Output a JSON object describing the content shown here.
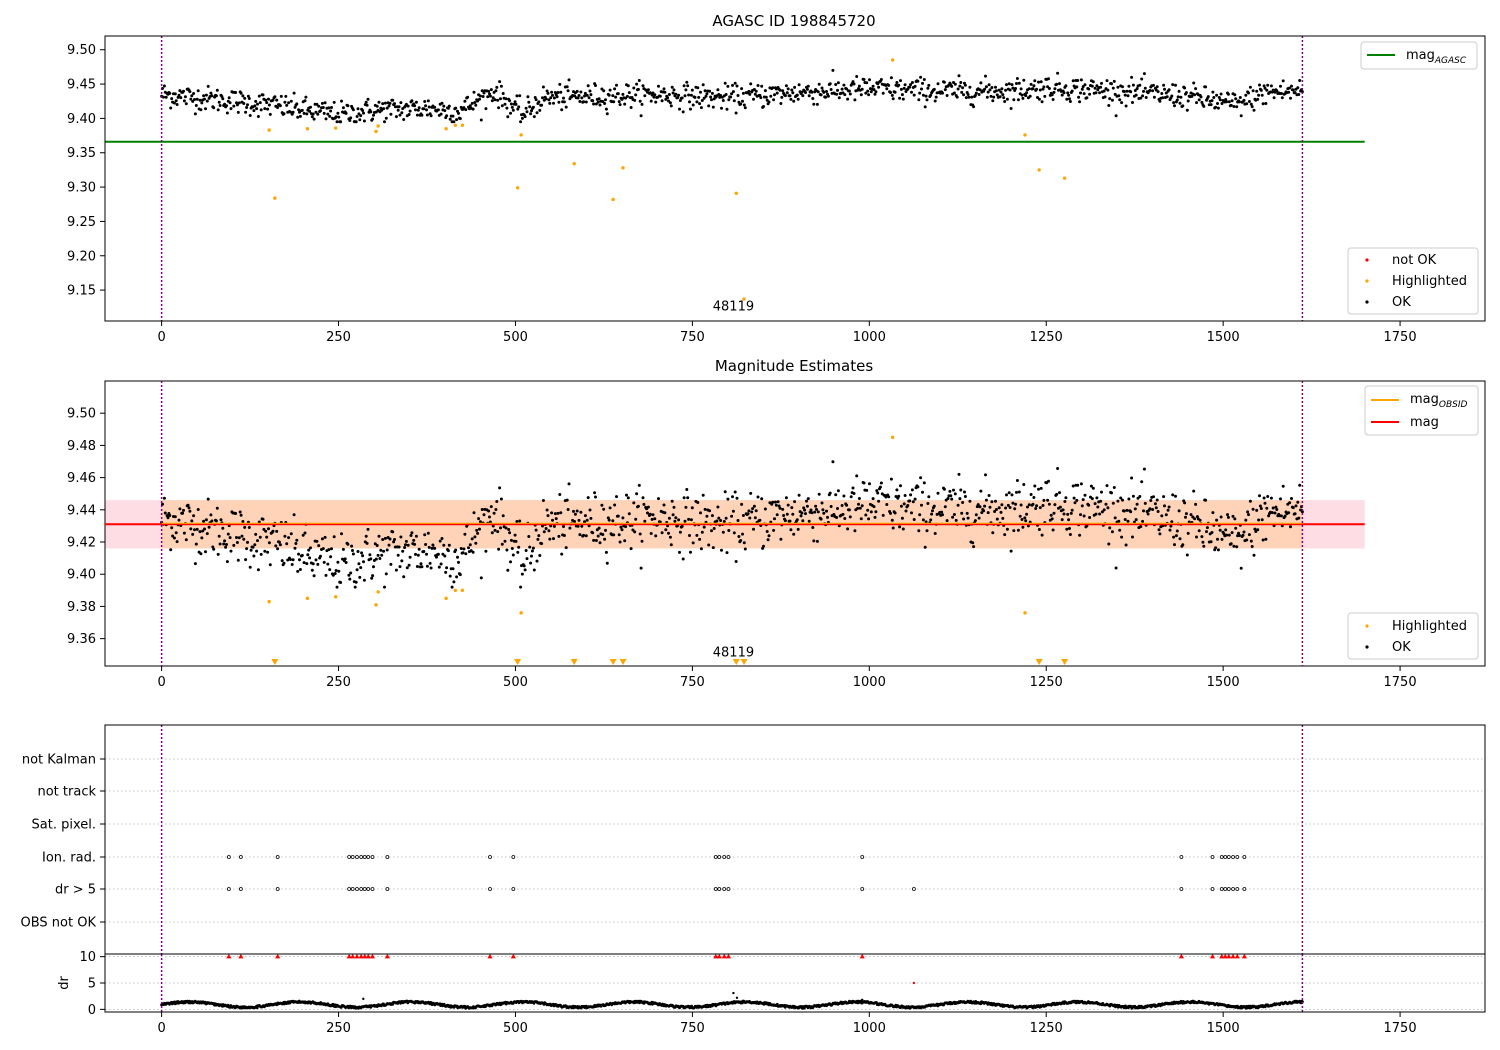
{
  "chart_data": [
    {
      "type": "scatter",
      "title": "AGASC ID 198845720",
      "xlim": [
        -80,
        1870
      ],
      "ylim": [
        9.105,
        9.52
      ],
      "xticks": [
        0,
        250,
        500,
        750,
        1000,
        1250,
        1500,
        1750
      ],
      "yticks": [
        9.15,
        9.2,
        9.25,
        9.3,
        9.35,
        9.4,
        9.45,
        9.5
      ],
      "vlines": [
        0,
        1612
      ],
      "annotation": {
        "text": "48119",
        "x": 808,
        "y": 9.12
      },
      "reference_line": {
        "name": "mag_AGASC",
        "y": 9.366,
        "x0": -80,
        "x1": 1700,
        "color": "#008000"
      },
      "legend_top": {
        "placement": "top-right",
        "items": [
          {
            "label": "mag",
            "sub": "AGASC",
            "color": "#008000"
          }
        ]
      },
      "legend_bottom": {
        "placement": "bottom-right",
        "items": [
          {
            "label": "not OK",
            "color": "#ff0000"
          },
          {
            "label": "Highlighted",
            "color": "#ffa500"
          },
          {
            "label": "OK",
            "color": "#000000"
          }
        ]
      },
      "series": [
        {
          "name": "Highlighted",
          "color": "#ffa500",
          "points": [
            [
              152,
              9.383
            ],
            [
              160,
              9.284
            ],
            [
              206,
              9.385
            ],
            [
              246,
              9.386
            ],
            [
              303,
              9.381
            ],
            [
              306,
              9.389
            ],
            [
              402,
              9.385
            ],
            [
              415,
              9.39
            ],
            [
              425,
              9.39
            ],
            [
              503,
              9.299
            ],
            [
              508,
              9.376
            ],
            [
              583,
              9.334
            ],
            [
              638,
              9.282
            ],
            [
              652,
              9.328
            ],
            [
              812,
              9.291
            ],
            [
              823,
              9.137
            ],
            [
              1033,
              9.485
            ],
            [
              1220,
              9.376
            ],
            [
              1240,
              9.325
            ],
            [
              1276,
              9.313
            ]
          ]
        },
        {
          "name": "OK",
          "color": "#000000",
          "trend": [
            [
              0,
              9.435
            ],
            [
              100,
              9.425
            ],
            [
              150,
              9.42
            ],
            [
              250,
              9.405
            ],
            [
              300,
              9.412
            ],
            [
              380,
              9.415
            ],
            [
              420,
              9.41
            ],
            [
              470,
              9.44
            ],
            [
              510,
              9.405
            ],
            [
              540,
              9.43
            ],
            [
              700,
              9.435
            ],
            [
              800,
              9.43
            ],
            [
              900,
              9.438
            ],
            [
              1000,
              9.443
            ],
            [
              1100,
              9.44
            ],
            [
              1200,
              9.44
            ],
            [
              1250,
              9.445
            ],
            [
              1350,
              9.44
            ],
            [
              1450,
              9.432
            ],
            [
              1520,
              9.42
            ],
            [
              1560,
              9.438
            ],
            [
              1612,
              9.44
            ]
          ],
          "scatter": 0.009,
          "count": 1250
        }
      ]
    },
    {
      "type": "scatter",
      "title": "Magnitude Estimates",
      "xlim": [
        -80,
        1870
      ],
      "ylim": [
        9.343,
        9.52
      ],
      "xticks": [
        0,
        250,
        500,
        750,
        1000,
        1250,
        1500,
        1750
      ],
      "yticks": [
        9.36,
        9.38,
        9.4,
        9.42,
        9.44,
        9.46,
        9.48,
        9.5
      ],
      "vlines": [
        0,
        1612
      ],
      "annotation": {
        "text": "48119",
        "x": 808,
        "y": 9.349
      },
      "mag": {
        "y": 9.431,
        "color": "#ff0000",
        "band": [
          9.416,
          9.446
        ]
      },
      "mag_obsid": {
        "color": "#ffa500",
        "band": [
          9.416,
          9.446
        ]
      },
      "legend_top": {
        "placement": "top-right",
        "items": [
          {
            "label": "mag",
            "sub": "OBSID",
            "color": "#ffa500"
          },
          {
            "label": "mag",
            "sub": "",
            "color": "#ff0000"
          }
        ]
      },
      "legend_bottom": {
        "placement": "bottom-right",
        "items": [
          {
            "label": "Highlighted",
            "color": "#ffa500"
          },
          {
            "label": "OK",
            "color": "#000000"
          }
        ]
      },
      "series": [
        {
          "name": "Highlighted",
          "color": "#ffa500",
          "points": [
            [
              152,
              9.383
            ],
            [
              206,
              9.385
            ],
            [
              246,
              9.386
            ],
            [
              303,
              9.381
            ],
            [
              306,
              9.389
            ],
            [
              402,
              9.385
            ],
            [
              415,
              9.39
            ],
            [
              425,
              9.39
            ],
            [
              508,
              9.376
            ],
            [
              1033,
              9.485
            ],
            [
              1220,
              9.376
            ]
          ]
        },
        {
          "name": "Highlighted-below",
          "color": "#ffa500",
          "x": [
            160,
            503,
            583,
            638,
            652,
            812,
            823,
            1240,
            1276
          ]
        },
        {
          "name": "OK",
          "color": "#000000",
          "trend": [
            [
              0,
              9.435
            ],
            [
              100,
              9.425
            ],
            [
              150,
              9.42
            ],
            [
              250,
              9.405
            ],
            [
              300,
              9.412
            ],
            [
              380,
              9.415
            ],
            [
              420,
              9.41
            ],
            [
              470,
              9.44
            ],
            [
              510,
              9.405
            ],
            [
              540,
              9.43
            ],
            [
              700,
              9.435
            ],
            [
              800,
              9.43
            ],
            [
              900,
              9.438
            ],
            [
              1000,
              9.443
            ],
            [
              1100,
              9.44
            ],
            [
              1200,
              9.44
            ],
            [
              1250,
              9.445
            ],
            [
              1350,
              9.44
            ],
            [
              1450,
              9.432
            ],
            [
              1520,
              9.42
            ],
            [
              1560,
              9.438
            ],
            [
              1612,
              9.44
            ]
          ],
          "scatter": 0.009,
          "count": 1250
        }
      ]
    },
    {
      "type": "scatter",
      "title": "",
      "xlim": [
        -80,
        1870
      ],
      "xticks": [
        0,
        250,
        500,
        750,
        1000,
        1250,
        1500,
        1750
      ],
      "vlines": [
        0,
        1612
      ],
      "flag_rows": [
        "not Kalman",
        "not track",
        "Sat. pixel.",
        "Ion. rad.",
        "dr > 5",
        "OBS not OK"
      ],
      "flag_events": {
        "Ion. rad.": [
          95,
          112,
          164,
          265,
          270,
          276,
          282,
          287,
          292,
          298,
          319,
          464,
          497,
          783,
          788,
          795,
          801,
          990,
          1441,
          1485,
          1498,
          1503,
          1508,
          1514,
          1520,
          1530
        ],
        "dr > 5": [
          95,
          112,
          164,
          265,
          270,
          276,
          282,
          287,
          292,
          298,
          319,
          464,
          497,
          783,
          788,
          795,
          801,
          990,
          1063,
          1441,
          1485,
          1498,
          1503,
          1508,
          1514,
          1520,
          1530
        ]
      },
      "dr_panel": {
        "ylabel": "dr",
        "ylim": [
          -0.5,
          10.5
        ],
        "yticks": [
          0,
          5,
          10
        ],
        "high_events": [
          95,
          112,
          164,
          265,
          270,
          276,
          282,
          287,
          292,
          298,
          319,
          464,
          497,
          783,
          788,
          795,
          801,
          990,
          1441,
          1485,
          1498,
          1503,
          1508,
          1514,
          1520,
          1530
        ],
        "high_value": 10,
        "outliers": [
          [
            808,
            3.1
          ],
          [
            813,
            2.2
          ],
          [
            1063,
            5.0
          ],
          [
            990,
            1.8
          ],
          [
            285,
            2.0
          ]
        ]
      }
    }
  ]
}
